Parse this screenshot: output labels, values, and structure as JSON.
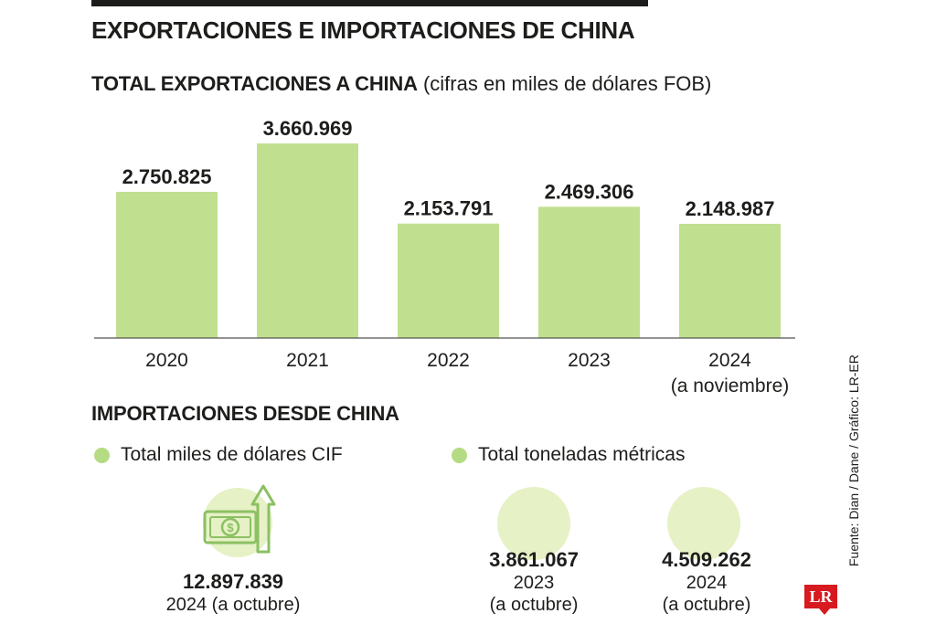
{
  "title": "EXPORTACIONES E IMPORTACIONES DE CHINA",
  "export_section": {
    "title": "TOTAL EXPORTACIONES A CHINA",
    "note": "(cifras en miles de dólares FOB)"
  },
  "chart_data": {
    "type": "bar",
    "title": "TOTAL EXPORTACIONES A CHINA",
    "subtitle": "(cifras en miles de dólares FOB)",
    "categories": [
      "2020",
      "2021",
      "2022",
      "2023",
      "2024"
    ],
    "category_sublabels": [
      "",
      "",
      "",
      "",
      "(a noviembre)"
    ],
    "values": [
      2750825,
      3660969,
      2153791,
      2469306,
      2148987
    ],
    "value_labels": [
      "2.750.825",
      "3.660.969",
      "2.153.791",
      "2.469.306",
      "2.148.987"
    ],
    "ylim": [
      0,
      3660969
    ],
    "grid": false,
    "bar_color": "#c1e08f"
  },
  "import_section": {
    "title": "IMPORTACIONES DESDE CHINA",
    "legend_cif": "Total miles de dólares CIF",
    "legend_tons": "Total toneladas métricas",
    "cif": {
      "value": "12.897.839",
      "label": "2024 (a octubre)"
    },
    "tons": [
      {
        "value": "3.861.067",
        "year": "2023",
        "note": "(a octubre)"
      },
      {
        "value": "4.509.262",
        "year": "2024",
        "note": "(a octubre)"
      }
    ],
    "icon": "money-growth-icon"
  },
  "colors": {
    "accent_green": "#b5db83",
    "light_green": "#e6f1c6",
    "brand_red": "#d71920"
  },
  "source": "Fuente: Dian / Dane / Gráfico: LR-ER",
  "logo_text": "LR"
}
